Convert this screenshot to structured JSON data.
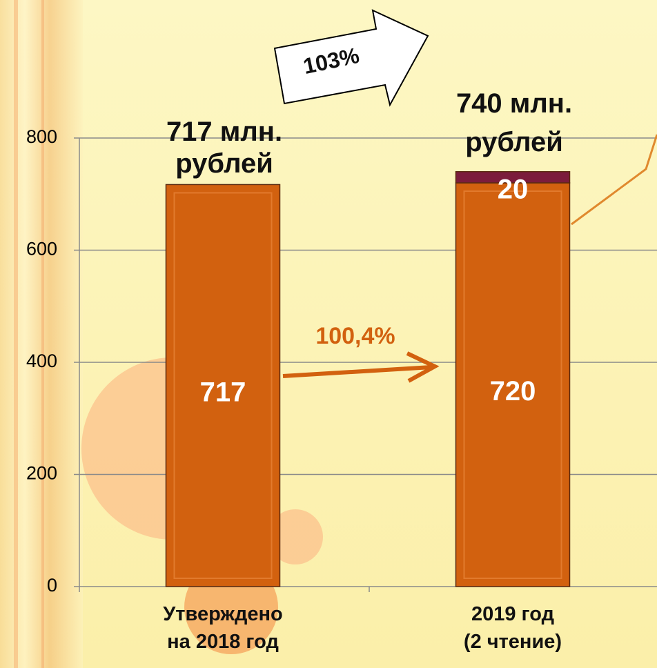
{
  "chart_data": {
    "type": "stacked_bar",
    "categories": [
      "Утверждено\nна 2018 год",
      "2019 год\n(2 чтение)"
    ],
    "series": [
      {
        "color": "#d2610f",
        "values": [
          717,
          720
        ]
      },
      {
        "color": "#7b1c3c",
        "values": [
          null,
          20
        ]
      }
    ],
    "ylim": [
      0,
      800
    ],
    "yticks": [
      0,
      200,
      400,
      600,
      800
    ],
    "grid": true,
    "annotations": {
      "total_left": "717 млн.\nрублей",
      "total_right": "740 млн.\nрублей",
      "growth_total": "103%",
      "growth_base": "100,4%"
    }
  }
}
